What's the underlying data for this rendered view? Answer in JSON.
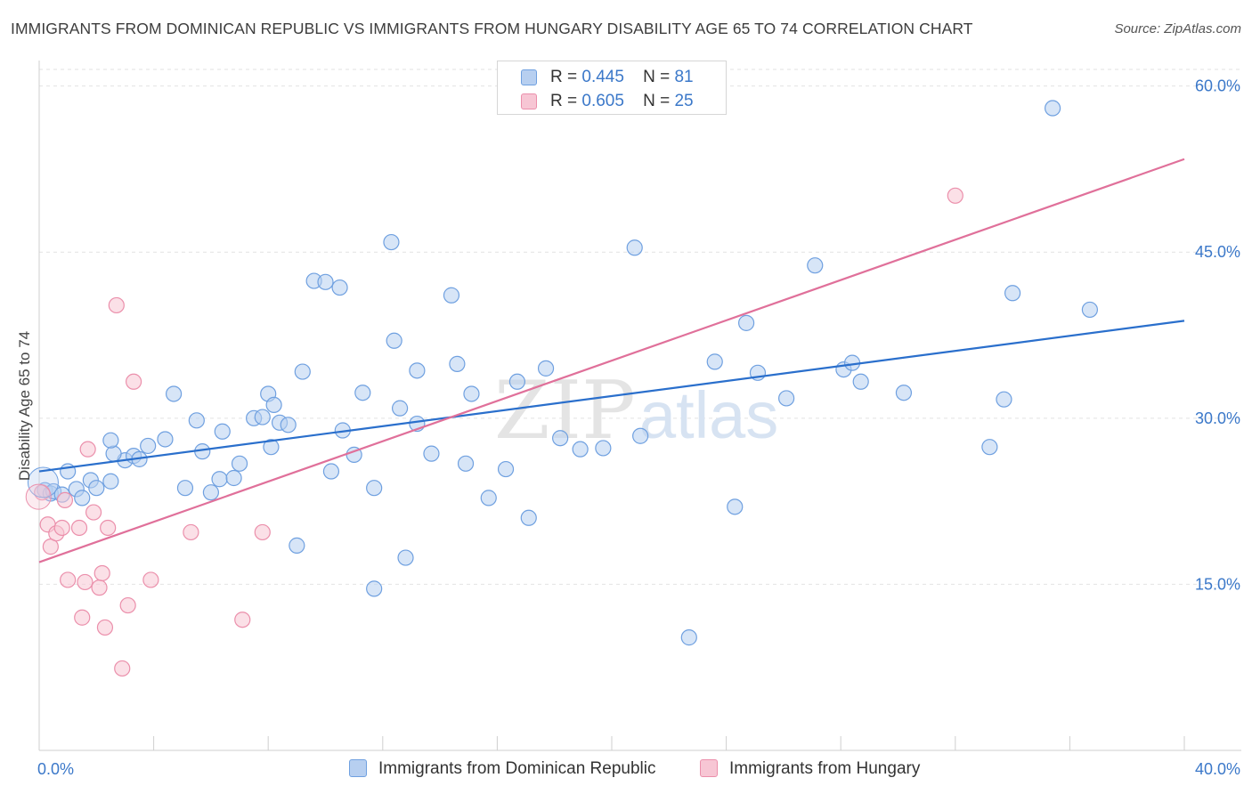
{
  "header": {
    "title": "IMMIGRANTS FROM DOMINICAN REPUBLIC VS IMMIGRANTS FROM HUNGARY DISABILITY AGE 65 TO 74 CORRELATION CHART",
    "source": "Source: ZipAtlas.com"
  },
  "watermark": {
    "zip": "ZIP",
    "atlas": "atlas"
  },
  "legend": {
    "r_label": "R =",
    "n_label": "N =",
    "series": [
      {
        "r": "0.445",
        "n": "81"
      },
      {
        "r": "0.605",
        "n": "25"
      }
    ]
  },
  "chart_data": {
    "type": "scatter",
    "title": "IMMIGRANTS FROM DOMINICAN REPUBLIC VS IMMIGRANTS FROM HUNGARY DISABILITY AGE 65 TO 74 CORRELATION CHART",
    "xlabel": "",
    "ylabel": "Disability Age 65 to 74",
    "xlim": [
      0,
      40
    ],
    "ylim": [
      0,
      61.5
    ],
    "x_tick_labels": [
      {
        "value": 0,
        "label": "0.0%"
      },
      {
        "value": 40,
        "label": "40.0%"
      }
    ],
    "y_tick_labels": [
      {
        "value": 15,
        "label": "15.0%"
      },
      {
        "value": 30,
        "label": "30.0%"
      },
      {
        "value": 45,
        "label": "45.0%"
      },
      {
        "value": 60,
        "label": "60.0%"
      }
    ],
    "grid": "horizontal dashed",
    "legend_position": "top-center",
    "series": [
      {
        "name": "Immigrants from Dominican Republic",
        "color": "#6fa0e0",
        "fill": "#b7cff0",
        "line_color": "#2a6fcc",
        "trend": {
          "x": [
            0,
            40
          ],
          "y": [
            25.2,
            38.8
          ]
        },
        "points": [
          [
            0.2,
            23.5
          ],
          [
            0.4,
            23.2
          ],
          [
            0.5,
            23.4
          ],
          [
            0.8,
            23.1
          ],
          [
            1.0,
            25.2
          ],
          [
            1.3,
            23.6
          ],
          [
            1.5,
            22.8
          ],
          [
            1.8,
            24.4
          ],
          [
            2.0,
            23.7
          ],
          [
            2.5,
            24.3
          ],
          [
            3.0,
            26.2
          ],
          [
            3.3,
            26.6
          ],
          [
            3.5,
            26.3
          ],
          [
            3.8,
            27.5
          ],
          [
            2.6,
            26.8
          ],
          [
            4.4,
            28.1
          ],
          [
            5.1,
            23.7
          ],
          [
            5.5,
            29.8
          ],
          [
            5.7,
            27.0
          ],
          [
            6.0,
            23.3
          ],
          [
            6.3,
            24.5
          ],
          [
            6.4,
            28.8
          ],
          [
            6.8,
            24.6
          ],
          [
            7.0,
            25.9
          ],
          [
            7.5,
            30.0
          ],
          [
            7.8,
            30.1
          ],
          [
            4.7,
            32.2
          ],
          [
            2.5,
            28.0
          ],
          [
            8.0,
            32.2
          ],
          [
            8.1,
            27.4
          ],
          [
            8.2,
            31.2
          ],
          [
            8.4,
            29.6
          ],
          [
            8.7,
            29.4
          ],
          [
            9.0,
            18.5
          ],
          [
            9.2,
            34.2
          ],
          [
            9.6,
            42.4
          ],
          [
            10.0,
            42.3
          ],
          [
            10.2,
            25.2
          ],
          [
            10.5,
            41.8
          ],
          [
            10.6,
            28.9
          ],
          [
            11.0,
            26.7
          ],
          [
            11.3,
            32.3
          ],
          [
            11.7,
            23.7
          ],
          [
            11.7,
            14.6
          ],
          [
            12.3,
            45.9
          ],
          [
            12.4,
            37.0
          ],
          [
            12.6,
            30.9
          ],
          [
            12.8,
            17.4
          ],
          [
            13.2,
            29.5
          ],
          [
            13.2,
            34.3
          ],
          [
            13.7,
            26.8
          ],
          [
            14.4,
            41.1
          ],
          [
            14.6,
            34.9
          ],
          [
            14.9,
            25.9
          ],
          [
            15.1,
            32.2
          ],
          [
            15.7,
            22.8
          ],
          [
            16.3,
            25.4
          ],
          [
            16.7,
            33.3
          ],
          [
            17.1,
            21.0
          ],
          [
            17.7,
            34.5
          ],
          [
            18.2,
            28.2
          ],
          [
            18.9,
            27.2
          ],
          [
            19.7,
            27.3
          ],
          [
            20.8,
            45.4
          ],
          [
            21.0,
            28.4
          ],
          [
            22.7,
            10.2
          ],
          [
            23.6,
            35.1
          ],
          [
            24.3,
            22.0
          ],
          [
            24.7,
            38.6
          ],
          [
            25.1,
            34.1
          ],
          [
            26.1,
            31.8
          ],
          [
            27.1,
            43.8
          ],
          [
            28.1,
            34.4
          ],
          [
            28.4,
            35.0
          ],
          [
            28.7,
            33.3
          ],
          [
            30.2,
            32.3
          ],
          [
            33.2,
            27.4
          ],
          [
            33.7,
            31.7
          ],
          [
            34.0,
            41.3
          ],
          [
            35.4,
            58.0
          ],
          [
            36.7,
            39.8
          ]
        ]
      },
      {
        "name": "Immigrants from Hungary",
        "color": "#eb8fab",
        "fill": "#f7c6d4",
        "line_color": "#e0709a",
        "trend": {
          "x": [
            0,
            40
          ],
          "y": [
            17.0,
            53.4
          ]
        },
        "points": [
          [
            0.1,
            23.3
          ],
          [
            0.3,
            20.4
          ],
          [
            0.4,
            18.4
          ],
          [
            0.6,
            19.6
          ],
          [
            0.8,
            20.1
          ],
          [
            0.9,
            22.6
          ],
          [
            1.0,
            15.4
          ],
          [
            1.4,
            20.1
          ],
          [
            1.5,
            12.0
          ],
          [
            1.6,
            15.2
          ],
          [
            1.7,
            27.2
          ],
          [
            1.9,
            21.5
          ],
          [
            2.1,
            14.7
          ],
          [
            2.2,
            16.0
          ],
          [
            2.3,
            11.1
          ],
          [
            2.4,
            20.1
          ],
          [
            2.7,
            40.2
          ],
          [
            2.9,
            7.4
          ],
          [
            3.1,
            13.1
          ],
          [
            3.3,
            33.3
          ],
          [
            3.9,
            15.4
          ],
          [
            5.3,
            19.7
          ],
          [
            7.1,
            11.8
          ],
          [
            7.8,
            19.7
          ],
          [
            32.0,
            50.1
          ]
        ]
      }
    ]
  }
}
